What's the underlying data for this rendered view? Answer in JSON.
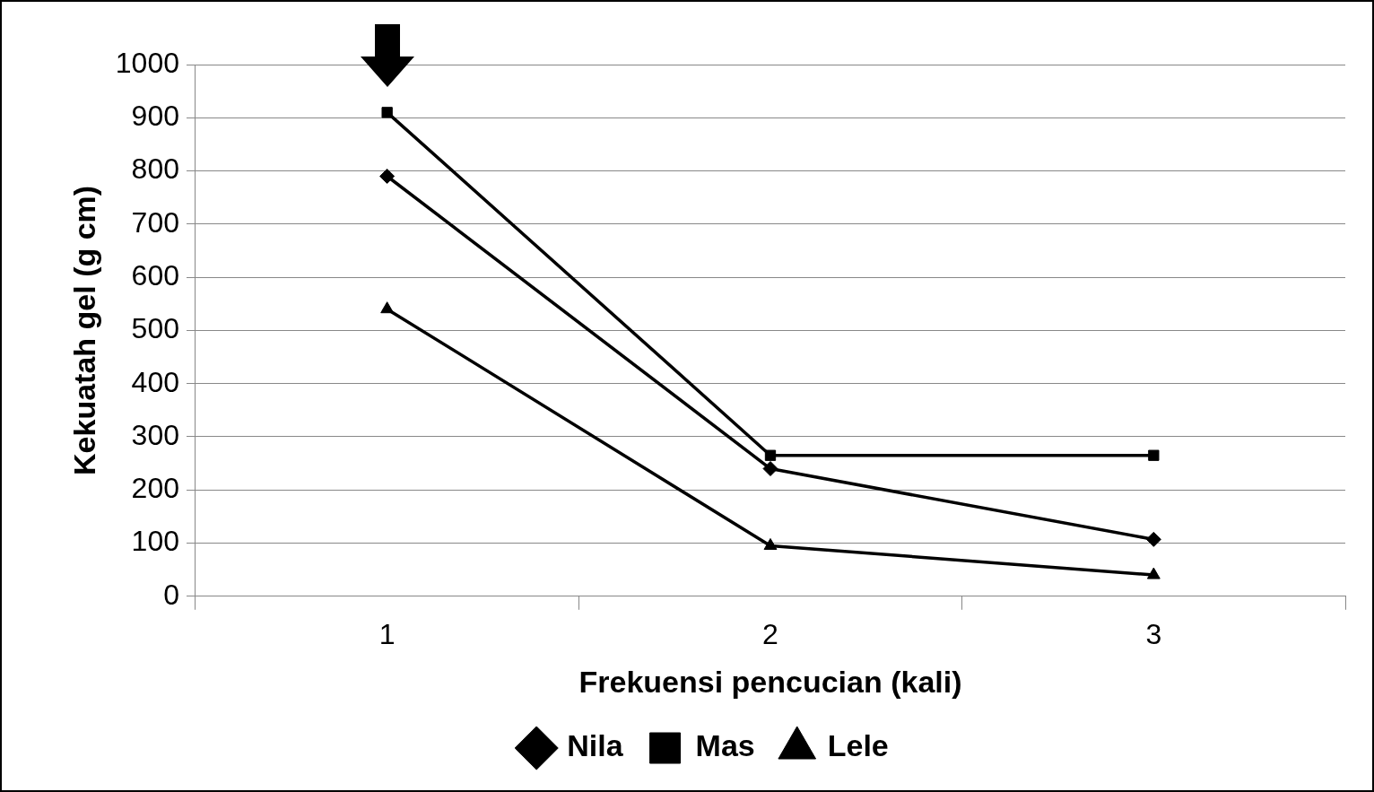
{
  "chart_data": {
    "type": "line",
    "xlabel": "Frekuensi pencucian (kali)",
    "ylabel": "Kekuatah gel (g cm)",
    "categories": [
      "1",
      "2",
      "3"
    ],
    "series": [
      {
        "name": "Nila",
        "color": "#000000",
        "marker": "diamond",
        "values": [
          790,
          240,
          107
        ]
      },
      {
        "name": "Mas",
        "color": "#000000",
        "marker": "square",
        "values": [
          910,
          265,
          265
        ]
      },
      {
        "name": "Lele",
        "color": "#000000",
        "marker": "triangle",
        "values": [
          540,
          95,
          40
        ]
      }
    ],
    "ylim": [
      0,
      1000
    ],
    "yticks": [
      0,
      100,
      200,
      300,
      400,
      500,
      600,
      700,
      800,
      900,
      1000
    ],
    "grid": "y",
    "legend": "bottom",
    "line_style": "solid"
  }
}
